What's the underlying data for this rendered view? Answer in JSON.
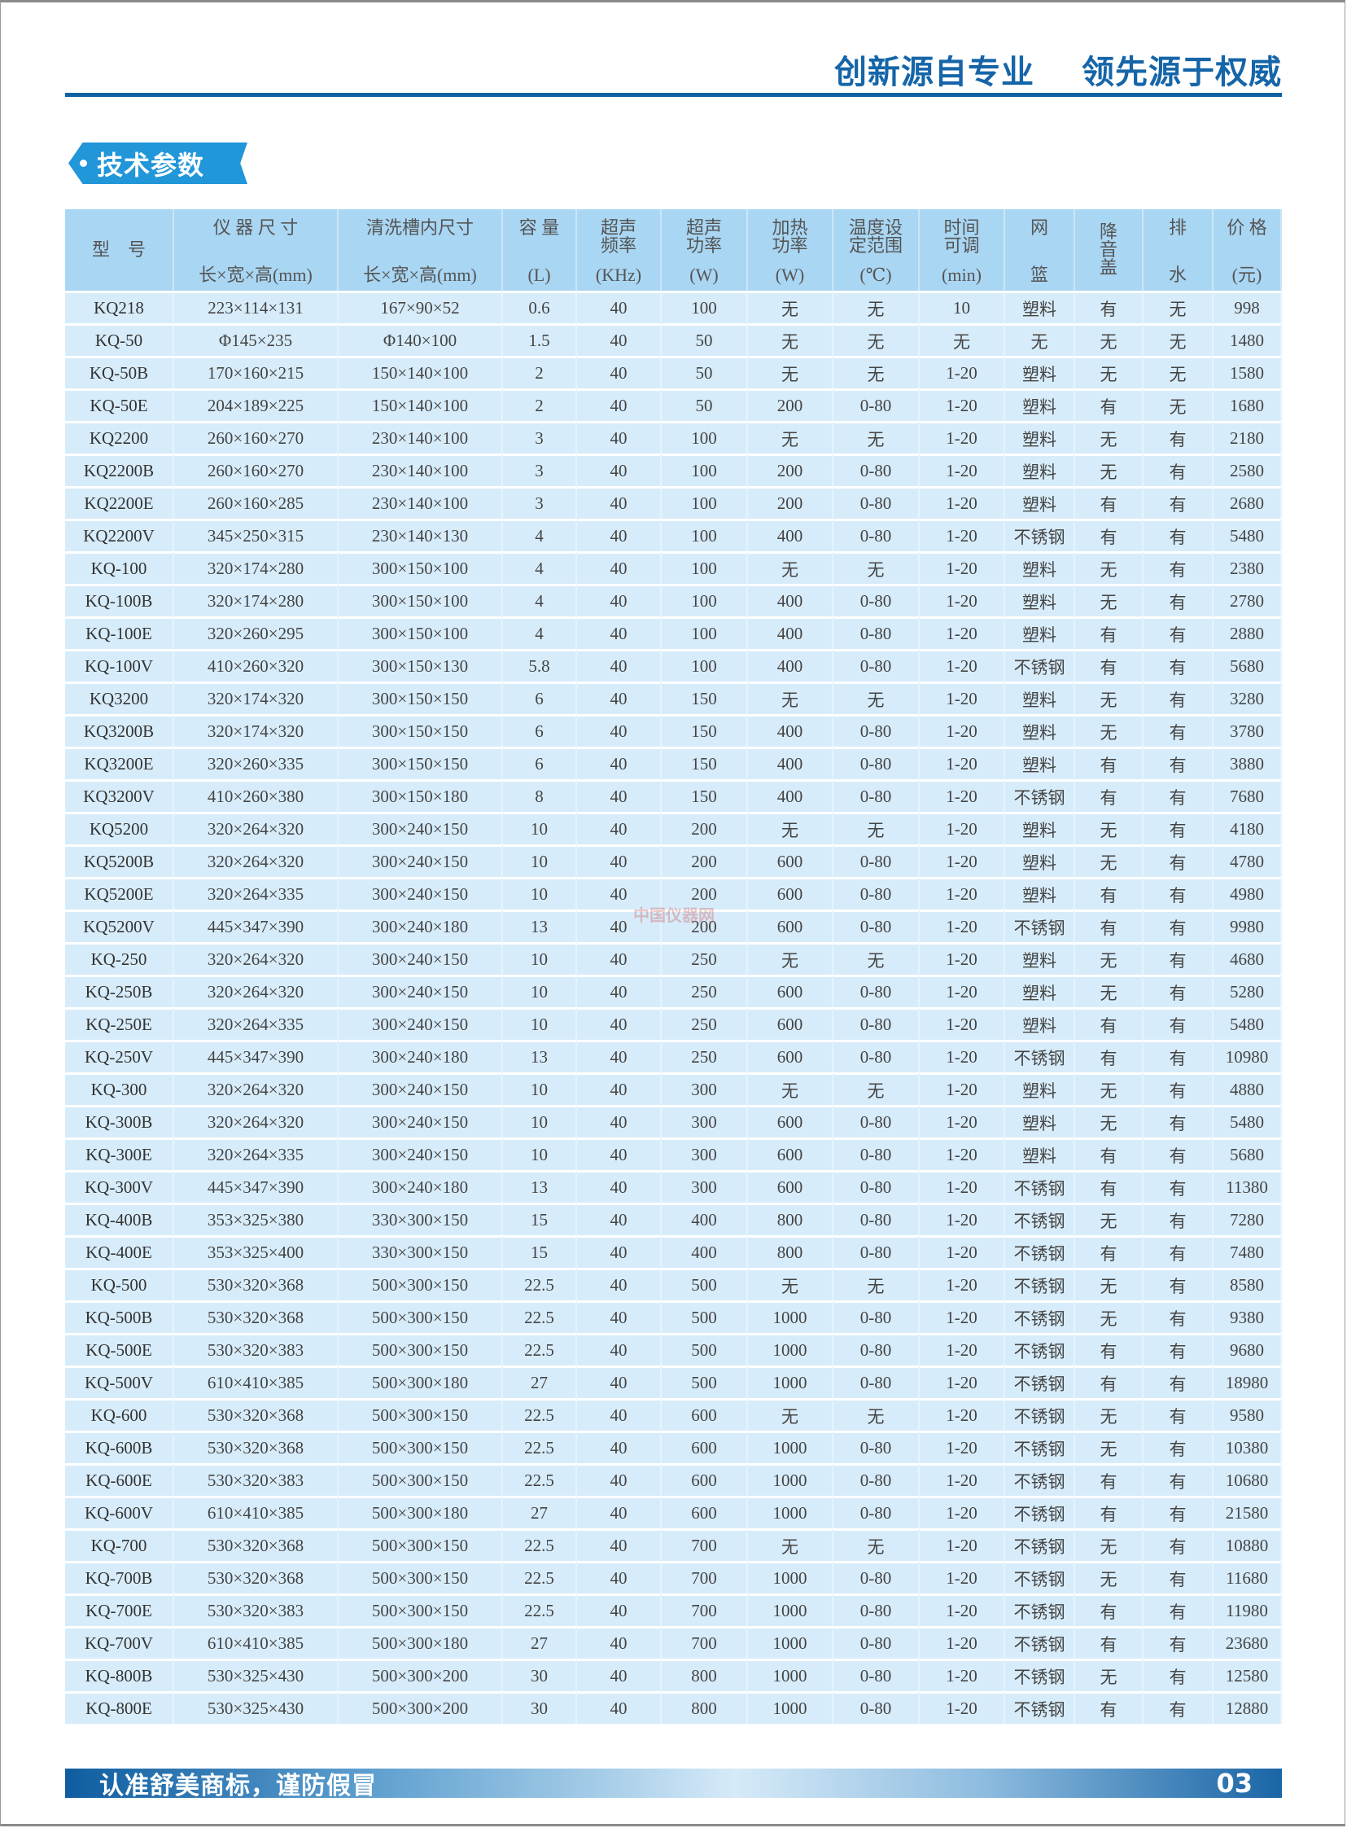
{
  "header": {
    "slogan_left": "创新源自专业",
    "slogan_right": "领先源于权威"
  },
  "section": {
    "title": "技术参数"
  },
  "colors": {
    "brand_blue": "#12609f",
    "badge_blue": "#2196d8",
    "header_bg": "#a9d6f3",
    "row_bg": "#d7ecfa"
  },
  "table": {
    "columns": [
      {
        "mid": "型　号"
      },
      {
        "top": "仪 器 尺 寸",
        "bottom": "长×宽×高(mm)"
      },
      {
        "top": "清洗槽内尺寸",
        "bottom": "长×宽×高(mm)"
      },
      {
        "top": "容 量",
        "bottom": "(L)"
      },
      {
        "top": "超声\n频率",
        "bottom": "(KHz)"
      },
      {
        "top": "超声\n功率",
        "bottom": "(W)"
      },
      {
        "top": "加热\n功率",
        "bottom": "(W)"
      },
      {
        "top": "温度设\n定范围",
        "bottom": "(℃)"
      },
      {
        "top": "时间\n可调",
        "bottom": "(min)"
      },
      {
        "top": "网",
        "bottom": "篮"
      },
      {
        "mid": "降\n音\n盖"
      },
      {
        "top": "排",
        "bottom": "水"
      },
      {
        "top": "价 格",
        "bottom": "(元)"
      }
    ],
    "rows": [
      [
        "KQ218",
        "223×114×131",
        "167×90×52",
        "0.6",
        "40",
        "100",
        "无",
        "无",
        "10",
        "塑料",
        "有",
        "无",
        "998"
      ],
      [
        "KQ-50",
        "Φ145×235",
        "Φ140×100",
        "1.5",
        "40",
        "50",
        "无",
        "无",
        "无",
        "无",
        "无",
        "无",
        "1480"
      ],
      [
        "KQ-50B",
        "170×160×215",
        "150×140×100",
        "2",
        "40",
        "50",
        "无",
        "无",
        "1-20",
        "塑料",
        "无",
        "无",
        "1580"
      ],
      [
        "KQ-50E",
        "204×189×225",
        "150×140×100",
        "2",
        "40",
        "50",
        "200",
        "0-80",
        "1-20",
        "塑料",
        "有",
        "无",
        "1680"
      ],
      [
        "KQ2200",
        "260×160×270",
        "230×140×100",
        "3",
        "40",
        "100",
        "无",
        "无",
        "1-20",
        "塑料",
        "无",
        "有",
        "2180"
      ],
      [
        "KQ2200B",
        "260×160×270",
        "230×140×100",
        "3",
        "40",
        "100",
        "200",
        "0-80",
        "1-20",
        "塑料",
        "无",
        "有",
        "2580"
      ],
      [
        "KQ2200E",
        "260×160×285",
        "230×140×100",
        "3",
        "40",
        "100",
        "200",
        "0-80",
        "1-20",
        "塑料",
        "有",
        "有",
        "2680"
      ],
      [
        "KQ2200V",
        "345×250×315",
        "230×140×130",
        "4",
        "40",
        "100",
        "400",
        "0-80",
        "1-20",
        "不锈钢",
        "有",
        "有",
        "5480"
      ],
      [
        "KQ-100",
        "320×174×280",
        "300×150×100",
        "4",
        "40",
        "100",
        "无",
        "无",
        "1-20",
        "塑料",
        "无",
        "有",
        "2380"
      ],
      [
        "KQ-100B",
        "320×174×280",
        "300×150×100",
        "4",
        "40",
        "100",
        "400",
        "0-80",
        "1-20",
        "塑料",
        "无",
        "有",
        "2780"
      ],
      [
        "KQ-100E",
        "320×260×295",
        "300×150×100",
        "4",
        "40",
        "100",
        "400",
        "0-80",
        "1-20",
        "塑料",
        "有",
        "有",
        "2880"
      ],
      [
        "KQ-100V",
        "410×260×320",
        "300×150×130",
        "5.8",
        "40",
        "100",
        "400",
        "0-80",
        "1-20",
        "不锈钢",
        "有",
        "有",
        "5680"
      ],
      [
        "KQ3200",
        "320×174×320",
        "300×150×150",
        "6",
        "40",
        "150",
        "无",
        "无",
        "1-20",
        "塑料",
        "无",
        "有",
        "3280"
      ],
      [
        "KQ3200B",
        "320×174×320",
        "300×150×150",
        "6",
        "40",
        "150",
        "400",
        "0-80",
        "1-20",
        "塑料",
        "无",
        "有",
        "3780"
      ],
      [
        "KQ3200E",
        "320×260×335",
        "300×150×150",
        "6",
        "40",
        "150",
        "400",
        "0-80",
        "1-20",
        "塑料",
        "有",
        "有",
        "3880"
      ],
      [
        "KQ3200V",
        "410×260×380",
        "300×150×180",
        "8",
        "40",
        "150",
        "400",
        "0-80",
        "1-20",
        "不锈钢",
        "有",
        "有",
        "7680"
      ],
      [
        "KQ5200",
        "320×264×320",
        "300×240×150",
        "10",
        "40",
        "200",
        "无",
        "无",
        "1-20",
        "塑料",
        "无",
        "有",
        "4180"
      ],
      [
        "KQ5200B",
        "320×264×320",
        "300×240×150",
        "10",
        "40",
        "200",
        "600",
        "0-80",
        "1-20",
        "塑料",
        "无",
        "有",
        "4780"
      ],
      [
        "KQ5200E",
        "320×264×335",
        "300×240×150",
        "10",
        "40",
        "200",
        "600",
        "0-80",
        "1-20",
        "塑料",
        "有",
        "有",
        "4980"
      ],
      [
        "KQ5200V",
        "445×347×390",
        "300×240×180",
        "13",
        "40",
        "200",
        "600",
        "0-80",
        "1-20",
        "不锈钢",
        "有",
        "有",
        "9980"
      ],
      [
        "KQ-250",
        "320×264×320",
        "300×240×150",
        "10",
        "40",
        "250",
        "无",
        "无",
        "1-20",
        "塑料",
        "无",
        "有",
        "4680"
      ],
      [
        "KQ-250B",
        "320×264×320",
        "300×240×150",
        "10",
        "40",
        "250",
        "600",
        "0-80",
        "1-20",
        "塑料",
        "无",
        "有",
        "5280"
      ],
      [
        "KQ-250E",
        "320×264×335",
        "300×240×150",
        "10",
        "40",
        "250",
        "600",
        "0-80",
        "1-20",
        "塑料",
        "有",
        "有",
        "5480"
      ],
      [
        "KQ-250V",
        "445×347×390",
        "300×240×180",
        "13",
        "40",
        "250",
        "600",
        "0-80",
        "1-20",
        "不锈钢",
        "有",
        "有",
        "10980"
      ],
      [
        "KQ-300",
        "320×264×320",
        "300×240×150",
        "10",
        "40",
        "300",
        "无",
        "无",
        "1-20",
        "塑料",
        "无",
        "有",
        "4880"
      ],
      [
        "KQ-300B",
        "320×264×320",
        "300×240×150",
        "10",
        "40",
        "300",
        "600",
        "0-80",
        "1-20",
        "塑料",
        "无",
        "有",
        "5480"
      ],
      [
        "KQ-300E",
        "320×264×335",
        "300×240×150",
        "10",
        "40",
        "300",
        "600",
        "0-80",
        "1-20",
        "塑料",
        "有",
        "有",
        "5680"
      ],
      [
        "KQ-300V",
        "445×347×390",
        "300×240×180",
        "13",
        "40",
        "300",
        "600",
        "0-80",
        "1-20",
        "不锈钢",
        "有",
        "有",
        "11380"
      ],
      [
        "KQ-400B",
        "353×325×380",
        "330×300×150",
        "15",
        "40",
        "400",
        "800",
        "0-80",
        "1-20",
        "不锈钢",
        "无",
        "有",
        "7280"
      ],
      [
        "KQ-400E",
        "353×325×400",
        "330×300×150",
        "15",
        "40",
        "400",
        "800",
        "0-80",
        "1-20",
        "不锈钢",
        "有",
        "有",
        "7480"
      ],
      [
        "KQ-500",
        "530×320×368",
        "500×300×150",
        "22.5",
        "40",
        "500",
        "无",
        "无",
        "1-20",
        "不锈钢",
        "无",
        "有",
        "8580"
      ],
      [
        "KQ-500B",
        "530×320×368",
        "500×300×150",
        "22.5",
        "40",
        "500",
        "1000",
        "0-80",
        "1-20",
        "不锈钢",
        "无",
        "有",
        "9380"
      ],
      [
        "KQ-500E",
        "530×320×383",
        "500×300×150",
        "22.5",
        "40",
        "500",
        "1000",
        "0-80",
        "1-20",
        "不锈钢",
        "有",
        "有",
        "9680"
      ],
      [
        "KQ-500V",
        "610×410×385",
        "500×300×180",
        "27",
        "40",
        "500",
        "1000",
        "0-80",
        "1-20",
        "不锈钢",
        "有",
        "有",
        "18980"
      ],
      [
        "KQ-600",
        "530×320×368",
        "500×300×150",
        "22.5",
        "40",
        "600",
        "无",
        "无",
        "1-20",
        "不锈钢",
        "无",
        "有",
        "9580"
      ],
      [
        "KQ-600B",
        "530×320×368",
        "500×300×150",
        "22.5",
        "40",
        "600",
        "1000",
        "0-80",
        "1-20",
        "不锈钢",
        "无",
        "有",
        "10380"
      ],
      [
        "KQ-600E",
        "530×320×383",
        "500×300×150",
        "22.5",
        "40",
        "600",
        "1000",
        "0-80",
        "1-20",
        "不锈钢",
        "有",
        "有",
        "10680"
      ],
      [
        "KQ-600V",
        "610×410×385",
        "500×300×180",
        "27",
        "40",
        "600",
        "1000",
        "0-80",
        "1-20",
        "不锈钢",
        "有",
        "有",
        "21580"
      ],
      [
        "KQ-700",
        "530×320×368",
        "500×300×150",
        "22.5",
        "40",
        "700",
        "无",
        "无",
        "1-20",
        "不锈钢",
        "无",
        "有",
        "10880"
      ],
      [
        "KQ-700B",
        "530×320×368",
        "500×300×150",
        "22.5",
        "40",
        "700",
        "1000",
        "0-80",
        "1-20",
        "不锈钢",
        "无",
        "有",
        "11680"
      ],
      [
        "KQ-700E",
        "530×320×383",
        "500×300×150",
        "22.5",
        "40",
        "700",
        "1000",
        "0-80",
        "1-20",
        "不锈钢",
        "有",
        "有",
        "11980"
      ],
      [
        "KQ-700V",
        "610×410×385",
        "500×300×180",
        "27",
        "40",
        "700",
        "1000",
        "0-80",
        "1-20",
        "不锈钢",
        "有",
        "有",
        "23680"
      ],
      [
        "KQ-800B",
        "530×325×430",
        "500×300×200",
        "30",
        "40",
        "800",
        "1000",
        "0-80",
        "1-20",
        "不锈钢",
        "无",
        "有",
        "12580"
      ],
      [
        "KQ-800E",
        "530×325×430",
        "500×300×200",
        "30",
        "40",
        "800",
        "1000",
        "0-80",
        "1-20",
        "不锈钢",
        "有",
        "有",
        "12880"
      ]
    ]
  },
  "watermark": "中国仪器网",
  "footer": {
    "text": "认准舒美商标，谨防假冒",
    "page_number": "03"
  }
}
